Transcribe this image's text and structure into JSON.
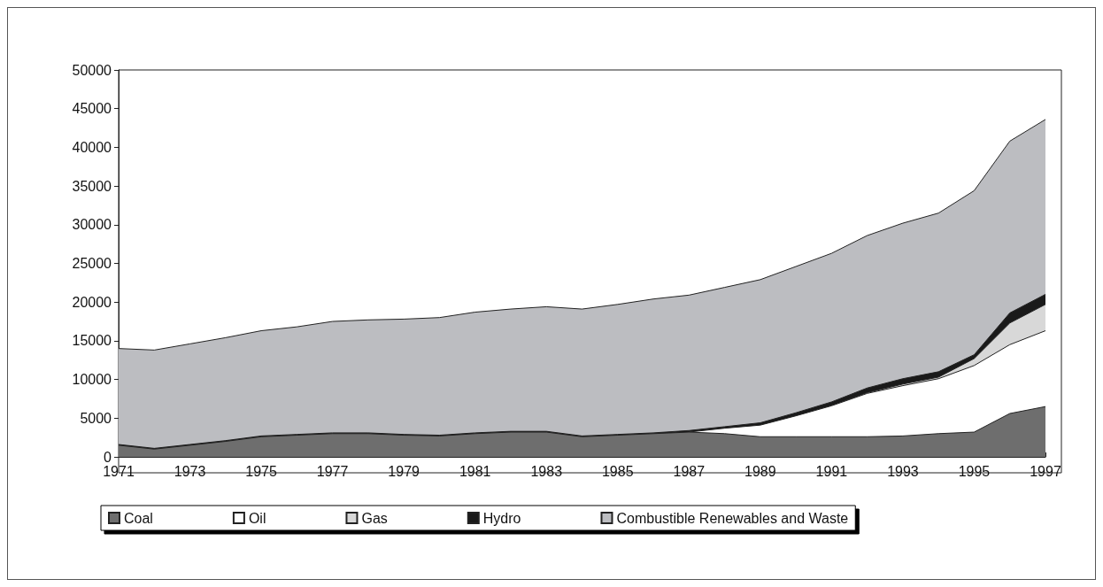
{
  "chart_data": {
    "type": "area",
    "stacked": true,
    "legend": "bottom",
    "grid": false,
    "marker": "none",
    "x": [
      1971,
      1972,
      1973,
      1974,
      1975,
      1976,
      1977,
      1978,
      1979,
      1980,
      1981,
      1982,
      1983,
      1984,
      1985,
      1986,
      1987,
      1988,
      1989,
      1990,
      1991,
      1992,
      1993,
      1994,
      1995,
      1996,
      1997
    ],
    "xlim": [
      1971,
      1997
    ],
    "xticks": [
      1971,
      1973,
      1975,
      1977,
      1979,
      1981,
      1983,
      1985,
      1987,
      1989,
      1991,
      1993,
      1995,
      1997
    ],
    "ylim": [
      0,
      50000
    ],
    "yticks": [
      0,
      5000,
      10000,
      15000,
      20000,
      25000,
      30000,
      35000,
      40000,
      45000,
      50000
    ],
    "series": [
      {
        "name": "Coal",
        "color": "#6e6e6e",
        "values": [
          1500,
          1000,
          1500,
          2000,
          2600,
          2800,
          3000,
          3000,
          2800,
          2700,
          3000,
          3200,
          3200,
          2600,
          2800,
          3000,
          3200,
          3000,
          2600,
          2600,
          2600,
          2600,
          2700,
          3000,
          3200,
          5600,
          6500
        ]
      },
      {
        "name": "Oil",
        "color": "#ffffff",
        "values": [
          0,
          0,
          0,
          0,
          0,
          0,
          0,
          0,
          0,
          0,
          0,
          0,
          0,
          0,
          0,
          0,
          0,
          700,
          1500,
          2700,
          4000,
          5600,
          6500,
          7100,
          8600,
          8900,
          9800
        ]
      },
      {
        "name": "Gas",
        "color": "#d8d8d8",
        "values": [
          0,
          0,
          0,
          0,
          0,
          0,
          0,
          0,
          0,
          0,
          0,
          0,
          0,
          0,
          0,
          0,
          0,
          0,
          0,
          0,
          0,
          100,
          200,
          200,
          900,
          2800,
          3400
        ]
      },
      {
        "name": "Hydro",
        "color": "#1a1a1a",
        "values": [
          100,
          100,
          100,
          100,
          100,
          100,
          100,
          100,
          100,
          100,
          100,
          100,
          100,
          100,
          100,
          100,
          200,
          200,
          300,
          400,
          500,
          600,
          700,
          700,
          500,
          1300,
          1300
        ]
      },
      {
        "name": "Combustible Renewables and Waste",
        "color": "#bcbdc1",
        "values": [
          12400,
          12700,
          13000,
          13300,
          13600,
          13900,
          14400,
          14600,
          14900,
          15200,
          15600,
          15800,
          16100,
          16400,
          16800,
          17300,
          17500,
          18000,
          18500,
          18900,
          19200,
          19700,
          20100,
          20500,
          21200,
          22200,
          22600
        ]
      }
    ]
  }
}
